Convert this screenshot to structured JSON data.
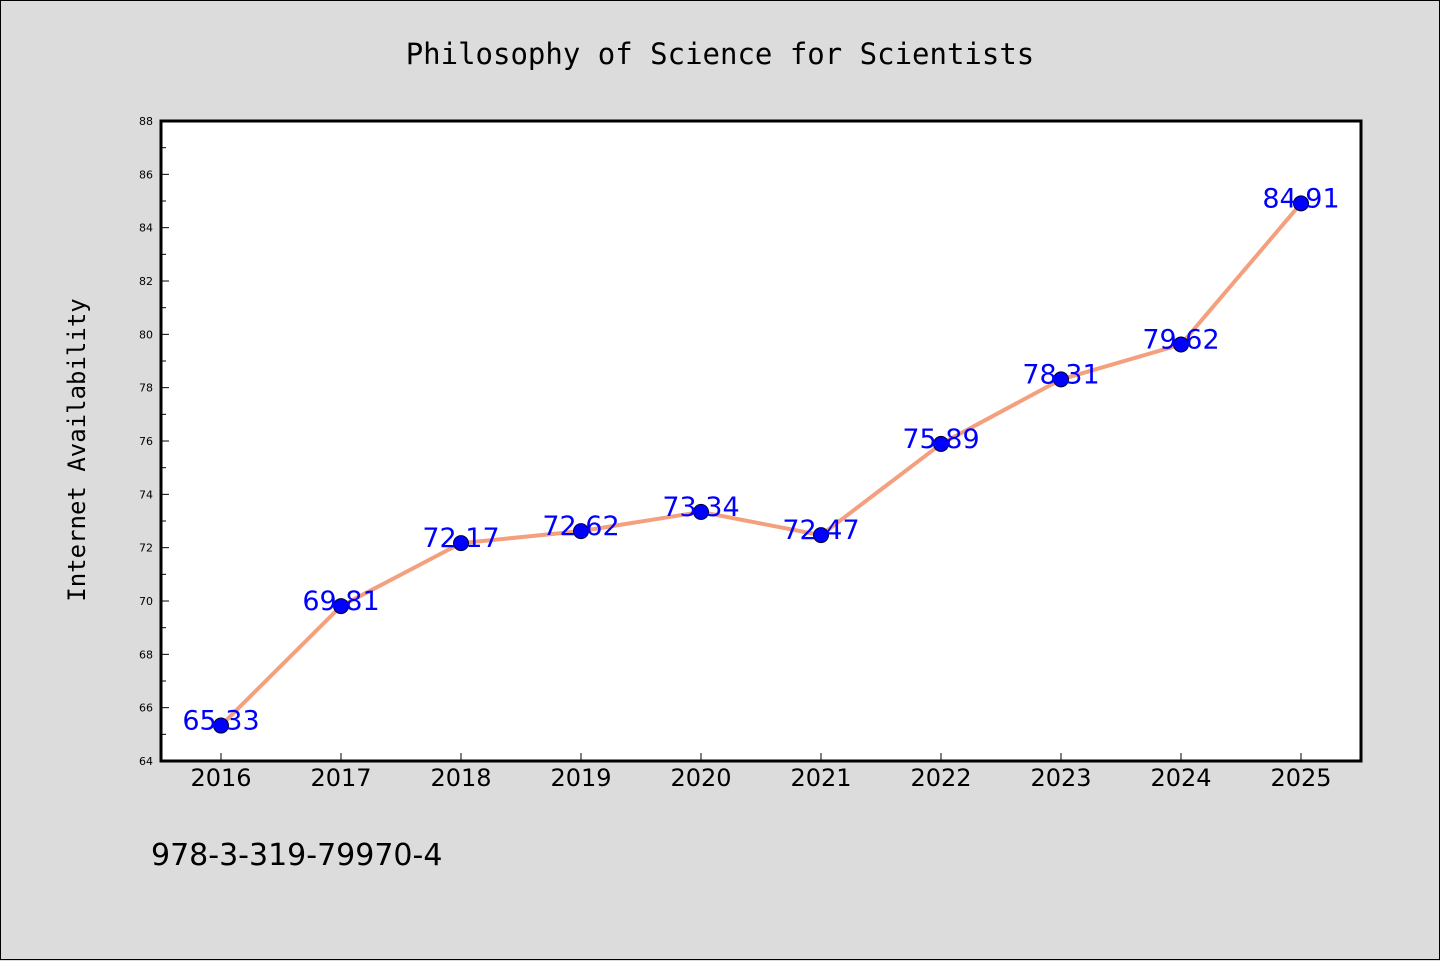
{
  "chart_data": {
    "type": "line",
    "title": "Philosophy of Science for Scientists",
    "xlabel": "",
    "ylabel": "Internet Availability",
    "categories": [
      "2016",
      "2017",
      "2018",
      "2019",
      "2020",
      "2021",
      "2022",
      "2023",
      "2024",
      "2025"
    ],
    "series": [
      {
        "values": [
          65.33,
          69.81,
          72.17,
          72.62,
          73.34,
          72.47,
          75.89,
          78.31,
          79.62,
          84.91
        ],
        "data_labels": [
          "65.33",
          "69.81",
          "72.17",
          "72.62",
          "73.34",
          "72.47",
          "75.89",
          "78.31",
          "79.62",
          "84.91"
        ],
        "line_color": "#f4a07e",
        "marker_color": "#0000ff"
      }
    ],
    "ylim": [
      64,
      88
    ],
    "yticks": [
      "64",
      "66",
      "68",
      "70",
      "72",
      "74",
      "76",
      "78",
      "80",
      "82",
      "84",
      "86",
      "88"
    ],
    "grid": false,
    "legend": "none"
  },
  "footer": {
    "isbn": "978-3-319-79970-4"
  },
  "colors": {
    "background": "#dcdcdc",
    "plot_background": "#ffffff"
  }
}
